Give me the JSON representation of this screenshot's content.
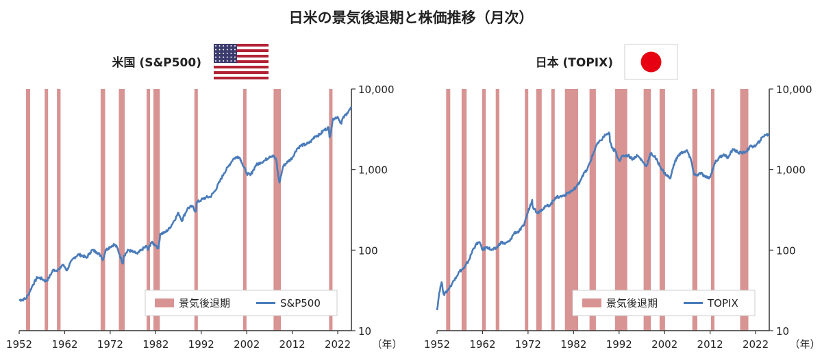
{
  "title": "日米の景気後退期と株価推移（月次）",
  "year_unit": "（年）",
  "chart_data": [
    {
      "type": "line",
      "subtitle": "米国 (S&P500)",
      "flag": "us-flag",
      "x_ticks": [
        "1952",
        "1962",
        "1972",
        "1982",
        "1992",
        "2002",
        "2012",
        "2022"
      ],
      "y_ticks": [
        "10",
        "100",
        "1,000",
        "10,000"
      ],
      "y_scale": "log",
      "xlim": [
        1952,
        2025
      ],
      "ylim": [
        10,
        10000
      ],
      "legend": {
        "bar_label": "景気後退期",
        "line_label": "S&P500",
        "position": "bottom-right"
      },
      "series": [
        {
          "name": "S&P500",
          "x": [
            1952,
            1953,
            1953.5,
            1954,
            1955,
            1956,
            1957,
            1957.9,
            1958.5,
            1959.5,
            1960,
            1960.9,
            1961.5,
            1962,
            1962.5,
            1963,
            1964,
            1965,
            1966,
            1966.8,
            1967.5,
            1968,
            1969,
            1970,
            1970.4,
            1971,
            1972,
            1972.9,
            1973.5,
            1974,
            1974.8,
            1975,
            1976,
            1977,
            1978,
            1979,
            1980,
            1980.3,
            1981,
            1982,
            1982.6,
            1983,
            1984,
            1985,
            1986,
            1987,
            1987.8,
            1988,
            1989,
            1990,
            1990.8,
            1991,
            1992,
            1993,
            1994,
            1995,
            1996,
            1997,
            1998,
            1999,
            2000,
            2000.5,
            2001,
            2002,
            2002.8,
            2003.5,
            2004,
            2005,
            2006,
            2007,
            2007.8,
            2008.5,
            2009,
            2009.2,
            2010,
            2011,
            2012,
            2013,
            2014,
            2015,
            2016,
            2017,
            2018,
            2019,
            2020,
            2020.2,
            2021,
            2022,
            2022.8,
            2023,
            2024,
            2025
          ],
          "values": [
            24,
            24.5,
            25,
            28,
            37,
            46,
            44,
            41,
            45,
            57,
            56,
            58,
            66,
            62,
            56,
            65,
            80,
            88,
            85,
            80,
            92,
            100,
            95,
            85,
            75,
            100,
            110,
            118,
            108,
            90,
            68,
            85,
            100,
            95,
            90,
            102,
            112,
            100,
            125,
            115,
            105,
            160,
            165,
            185,
            230,
            290,
            230,
            250,
            330,
            350,
            300,
            390,
            420,
            450,
            460,
            540,
            700,
            900,
            1100,
            1350,
            1450,
            1400,
            1200,
            900,
            850,
            1000,
            1130,
            1220,
            1300,
            1450,
            1500,
            1300,
            780,
            690,
            1100,
            1250,
            1400,
            1800,
            2000,
            2050,
            2200,
            2600,
            2700,
            3100,
            3300,
            2500,
            4300,
            4500,
            3700,
            4200,
            5000,
            5800
          ]
        }
      ],
      "recessions": [
        [
          1953.5,
          1954.4
        ],
        [
          1957.6,
          1958.3
        ],
        [
          1960.3,
          1961.1
        ],
        [
          1969.9,
          1970.9
        ],
        [
          1973.9,
          1975.2
        ],
        [
          1980.0,
          1980.5
        ],
        [
          1981.5,
          1982.9
        ],
        [
          1990.5,
          1991.2
        ],
        [
          2001.2,
          2001.9
        ],
        [
          2007.9,
          2009.5
        ],
        [
          2020.1,
          2020.3
        ]
      ]
    },
    {
      "type": "line",
      "subtitle": "日本 (TOPIX)",
      "flag": "jp-flag",
      "x_ticks": [
        "1952",
        "1962",
        "1972",
        "1982",
        "1992",
        "2002",
        "2012",
        "2022"
      ],
      "y_ticks": [
        "10",
        "100",
        "1,000",
        "10,000"
      ],
      "y_scale": "log",
      "xlim": [
        1952,
        2025
      ],
      "ylim": [
        10,
        10000
      ],
      "legend": {
        "bar_label": "景気後退期",
        "line_label": "TOPIX",
        "position": "bottom-right"
      },
      "series": [
        {
          "name": "TOPIX",
          "x": [
            1952,
            1952.5,
            1953,
            1953.5,
            1954,
            1955,
            1956,
            1957,
            1958,
            1959,
            1960,
            1961,
            1961.6,
            1962,
            1963,
            1964,
            1965,
            1966,
            1967,
            1968,
            1969,
            1970,
            1971,
            1972,
            1972.9,
            1973,
            1974,
            1975,
            1976,
            1977,
            1978,
            1979,
            1980,
            1981,
            1982,
            1983,
            1984,
            1985,
            1986,
            1987,
            1988,
            1989,
            1989.9,
            1990,
            1990.8,
            1991,
            1992,
            1993,
            1994,
            1995,
            1996,
            1997,
            1998,
            1999,
            2000,
            2001,
            2002,
            2003,
            2003.3,
            2004,
            2005,
            2006,
            2007,
            2008,
            2008.5,
            2009,
            2010,
            2011,
            2012,
            2013,
            2014,
            2015,
            2016,
            2017,
            2018,
            2019,
            2020,
            2021,
            2022,
            2023,
            2024,
            2025
          ],
          "values": [
            18,
            30,
            40,
            28,
            30,
            36,
            45,
            55,
            60,
            75,
            105,
            125,
            118,
            100,
            110,
            100,
            105,
            125,
            120,
            130,
            165,
            170,
            200,
            300,
            420,
            350,
            290,
            320,
            350,
            370,
            450,
            460,
            480,
            520,
            560,
            650,
            850,
            1000,
            1400,
            2000,
            2300,
            2700,
            2800,
            2200,
            1700,
            1800,
            1300,
            1500,
            1500,
            1350,
            1500,
            1300,
            1100,
            1600,
            1400,
            1100,
            900,
            800,
            780,
            1150,
            1500,
            1650,
            1700,
            1200,
            860,
            850,
            900,
            800,
            800,
            1200,
            1400,
            1550,
            1400,
            1800,
            1650,
            1600,
            1700,
            1950,
            1950,
            2300,
            2700,
            2700
          ]
        }
      ],
      "recessions": [
        [
          1954.0,
          1954.9
        ],
        [
          1957.4,
          1958.5
        ],
        [
          1961.9,
          1962.7
        ],
        [
          1964.9,
          1965.7
        ],
        [
          1971.3,
          1971.9
        ],
        [
          1973.8,
          1975.0
        ],
        [
          1977.1,
          1977.8
        ],
        [
          1980.1,
          1983.0
        ],
        [
          1985.5,
          1986.9
        ],
        [
          1991.1,
          1993.8
        ],
        [
          1997.4,
          1999.0
        ],
        [
          2000.9,
          2002.1
        ],
        [
          2008.1,
          2009.2
        ],
        [
          2012.2,
          2012.8
        ],
        [
          2018.6,
          2020.4
        ]
      ]
    }
  ]
}
